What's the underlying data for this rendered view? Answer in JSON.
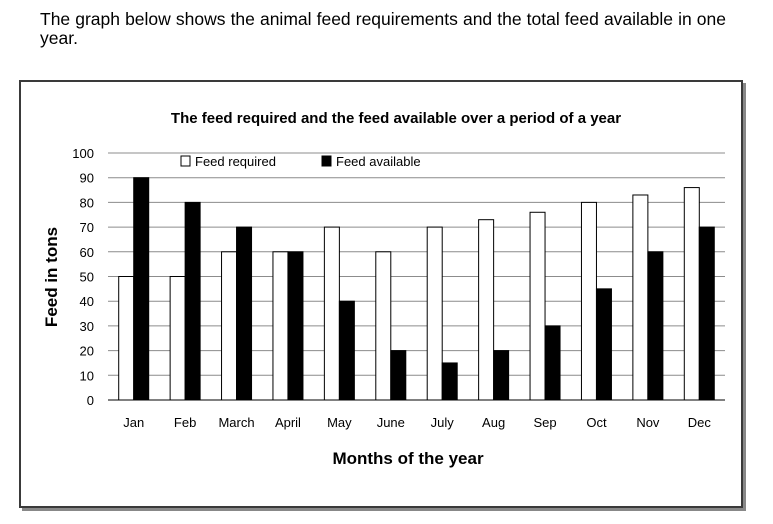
{
  "intro_text": "The graph below shows the animal feed requirements and the total feed available in one year.",
  "chart_data": {
    "type": "bar",
    "title": "The feed required and the feed available over a period of a year",
    "xlabel": "Months of the year",
    "ylabel": "Feed in tons",
    "ylim": [
      0,
      100
    ],
    "yticks": [
      0,
      10,
      20,
      30,
      40,
      50,
      60,
      70,
      80,
      90,
      100
    ],
    "grid": true,
    "legend_position": "top",
    "categories": [
      "Jan",
      "Feb",
      "March",
      "April",
      "May",
      "June",
      "July",
      "Aug",
      "Sep",
      "Oct",
      "Nov",
      "Dec"
    ],
    "series": [
      {
        "name": "Feed required",
        "color": "#ffffff",
        "values": [
          50,
          50,
          60,
          60,
          70,
          60,
          70,
          73,
          76,
          80,
          83,
          86
        ]
      },
      {
        "name": "Feed available",
        "color": "#000000",
        "values": [
          90,
          80,
          70,
          60,
          40,
          20,
          15,
          20,
          30,
          45,
          60,
          70
        ]
      }
    ]
  }
}
